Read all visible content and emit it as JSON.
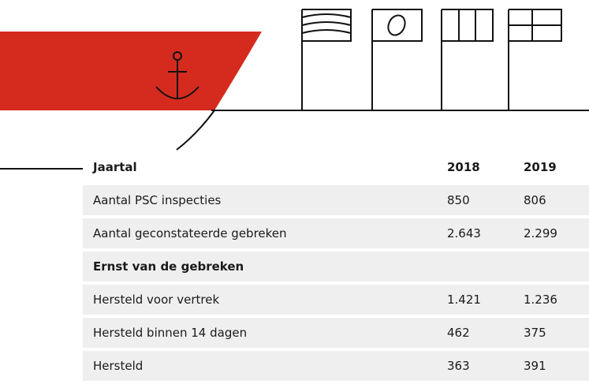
{
  "table": {
    "header": [
      "Jaartal",
      "2018",
      "2019"
    ],
    "rows": [
      [
        "Aantal PSC inspecties",
        "850",
        "806"
      ],
      [
        "Aantal geconstateerde gebreken",
        "2.643",
        "2.299"
      ],
      [
        "Ernst van de gebreken",
        "",
        ""
      ],
      [
        "Hersteld voor vertrek",
        "1.421",
        "1.236"
      ],
      [
        "Hersteld binnen 14 dagen",
        "462",
        "375"
      ],
      [
        "Hersteld",
        "363",
        "391"
      ]
    ],
    "bold_rows": [
      2
    ]
  }
}
